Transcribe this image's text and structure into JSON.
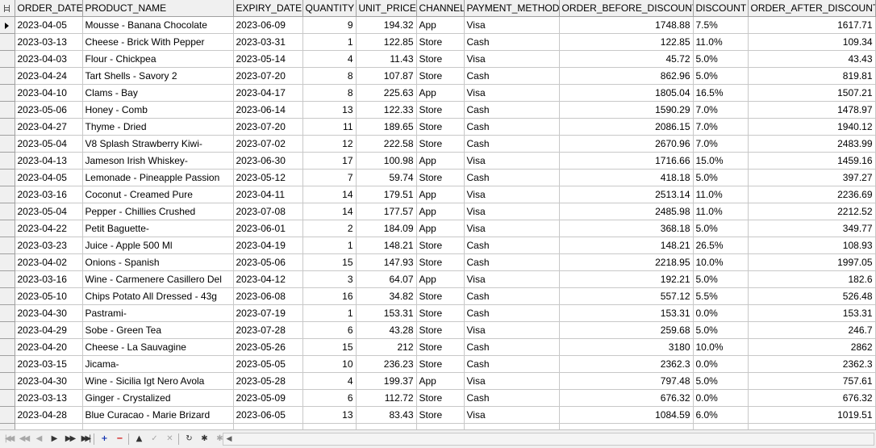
{
  "columns": [
    "ORDER_DATE",
    "PRODUCT_NAME",
    "EXPIRY_DATE",
    "QUANTITY",
    "UNIT_PRICE",
    "CHANNEL",
    "PAYMENT_METHOD",
    "ORDER_BEFORE_DISCOUNT",
    "DISCOUNT",
    "ORDER_AFTER_DISCOUNT"
  ],
  "current_row": 0,
  "rows": [
    [
      "2023-04-05",
      "Mousse - Banana Chocolate",
      "2023-06-09",
      "9",
      "194.32",
      "App",
      "Visa",
      "1748.88",
      "7.5%",
      "1617.71"
    ],
    [
      "2023-03-13",
      "Cheese - Brick With Pepper",
      "2023-03-31",
      "1",
      "122.85",
      "Store",
      "Cash",
      "122.85",
      "11.0%",
      "109.34"
    ],
    [
      "2023-04-03",
      "Flour - Chickpea",
      "2023-05-14",
      "4",
      "11.43",
      "Store",
      "Visa",
      "45.72",
      "5.0%",
      "43.43"
    ],
    [
      "2023-04-24",
      "Tart Shells - Savory 2",
      "2023-07-20",
      "8",
      "107.87",
      "Store",
      "Cash",
      "862.96",
      "5.0%",
      "819.81"
    ],
    [
      "2023-04-10",
      "Clams - Bay",
      "2023-04-17",
      "8",
      "225.63",
      "App",
      "Visa",
      "1805.04",
      "16.5%",
      "1507.21"
    ],
    [
      "2023-05-06",
      "Honey - Comb",
      "2023-06-14",
      "13",
      "122.33",
      "Store",
      "Cash",
      "1590.29",
      "7.0%",
      "1478.97"
    ],
    [
      "2023-04-27",
      "Thyme - Dried",
      "2023-07-20",
      "11",
      "189.65",
      "Store",
      "Cash",
      "2086.15",
      "7.0%",
      "1940.12"
    ],
    [
      "2023-05-04",
      "V8 Splash Strawberry Kiwi-",
      "2023-07-02",
      "12",
      "222.58",
      "Store",
      "Cash",
      "2670.96",
      "7.0%",
      "2483.99"
    ],
    [
      "2023-04-13",
      "Jameson Irish Whiskey-",
      "2023-06-30",
      "17",
      "100.98",
      "App",
      "Visa",
      "1716.66",
      "15.0%",
      "1459.16"
    ],
    [
      "2023-04-05",
      "Lemonade - Pineapple Passion",
      "2023-05-12",
      "7",
      "59.74",
      "Store",
      "Cash",
      "418.18",
      "5.0%",
      "397.27"
    ],
    [
      "2023-03-16",
      "Coconut - Creamed Pure",
      "2023-04-11",
      "14",
      "179.51",
      "App",
      "Visa",
      "2513.14",
      "11.0%",
      "2236.69"
    ],
    [
      "2023-05-04",
      "Pepper - Chillies Crushed",
      "2023-07-08",
      "14",
      "177.57",
      "App",
      "Visa",
      "2485.98",
      "11.0%",
      "2212.52"
    ],
    [
      "2023-04-22",
      "Petit Baguette-",
      "2023-06-01",
      "2",
      "184.09",
      "App",
      "Visa",
      "368.18",
      "5.0%",
      "349.77"
    ],
    [
      "2023-03-23",
      "Juice - Apple 500 Ml",
      "2023-04-19",
      "1",
      "148.21",
      "Store",
      "Cash",
      "148.21",
      "26.5%",
      "108.93"
    ],
    [
      "2023-04-02",
      "Onions - Spanish",
      "2023-05-06",
      "15",
      "147.93",
      "Store",
      "Cash",
      "2218.95",
      "10.0%",
      "1997.05"
    ],
    [
      "2023-03-16",
      "Wine - Carmenere Casillero Del",
      "2023-04-12",
      "3",
      "64.07",
      "App",
      "Visa",
      "192.21",
      "5.0%",
      "182.6"
    ],
    [
      "2023-05-10",
      "Chips Potato All Dressed - 43g",
      "2023-06-08",
      "16",
      "34.82",
      "Store",
      "Cash",
      "557.12",
      "5.5%",
      "526.48"
    ],
    [
      "2023-04-30",
      "Pastrami-",
      "2023-07-19",
      "1",
      "153.31",
      "Store",
      "Cash",
      "153.31",
      "0.0%",
      "153.31"
    ],
    [
      "2023-04-29",
      "Sobe - Green Tea",
      "2023-07-28",
      "6",
      "43.28",
      "Store",
      "Visa",
      "259.68",
      "5.0%",
      "246.7"
    ],
    [
      "2023-04-20",
      "Cheese - La Sauvagine",
      "2023-05-26",
      "15",
      "212",
      "Store",
      "Cash",
      "3180",
      "10.0%",
      "2862"
    ],
    [
      "2023-03-15",
      "Jicama-",
      "2023-05-05",
      "10",
      "236.23",
      "Store",
      "Cash",
      "2362.3",
      "0.0%",
      "2362.3"
    ],
    [
      "2023-04-30",
      "Wine - Sicilia Igt Nero Avola",
      "2023-05-28",
      "4",
      "199.37",
      "App",
      "Visa",
      "797.48",
      "5.0%",
      "757.61"
    ],
    [
      "2023-03-13",
      "Ginger - Crystalized",
      "2023-05-09",
      "6",
      "112.72",
      "Store",
      "Cash",
      "676.32",
      "0.0%",
      "676.32"
    ],
    [
      "2023-04-28",
      "Blue Curacao - Marie Brizard",
      "2023-06-05",
      "13",
      "83.43",
      "Store",
      "Visa",
      "1084.59",
      "6.0%",
      "1019.51"
    ],
    [
      "",
      "",
      "",
      "",
      "",
      "",
      "",
      "",
      "",
      ""
    ]
  ],
  "navigator": [
    {
      "name": "first-record-icon",
      "glyph": "|◀◀",
      "state": "disabled"
    },
    {
      "name": "prev-page-icon",
      "glyph": "◀◀",
      "state": "disabled"
    },
    {
      "name": "prev-record-icon",
      "glyph": "◀",
      "state": "disabled"
    },
    {
      "name": "next-record-icon",
      "glyph": "▶",
      "state": "normal"
    },
    {
      "name": "next-page-icon",
      "glyph": "▶▶",
      "state": "normal"
    },
    {
      "name": "last-record-icon",
      "glyph": "▶▶|",
      "state": "normal"
    },
    {
      "name": "insert-record-icon",
      "glyph": "+",
      "state": "blue"
    },
    {
      "name": "delete-record-icon",
      "glyph": "−",
      "state": "red"
    },
    {
      "name": "edit-record-icon",
      "glyph": "▲",
      "state": "normal"
    },
    {
      "name": "post-edit-icon",
      "glyph": "✓",
      "state": "disabled"
    },
    {
      "name": "cancel-edit-icon",
      "glyph": "✕",
      "state": "disabled"
    },
    {
      "name": "refresh-icon",
      "glyph": "↻",
      "state": "normal"
    },
    {
      "name": "apply-updates-icon",
      "glyph": "✱",
      "state": "normal"
    },
    {
      "name": "cancel-updates-icon",
      "glyph": "✱",
      "state": "disabled"
    },
    {
      "name": "filter-icon",
      "glyph": "◈",
      "state": "normal"
    }
  ],
  "scrollbar": {
    "left_arrow": "◀"
  }
}
